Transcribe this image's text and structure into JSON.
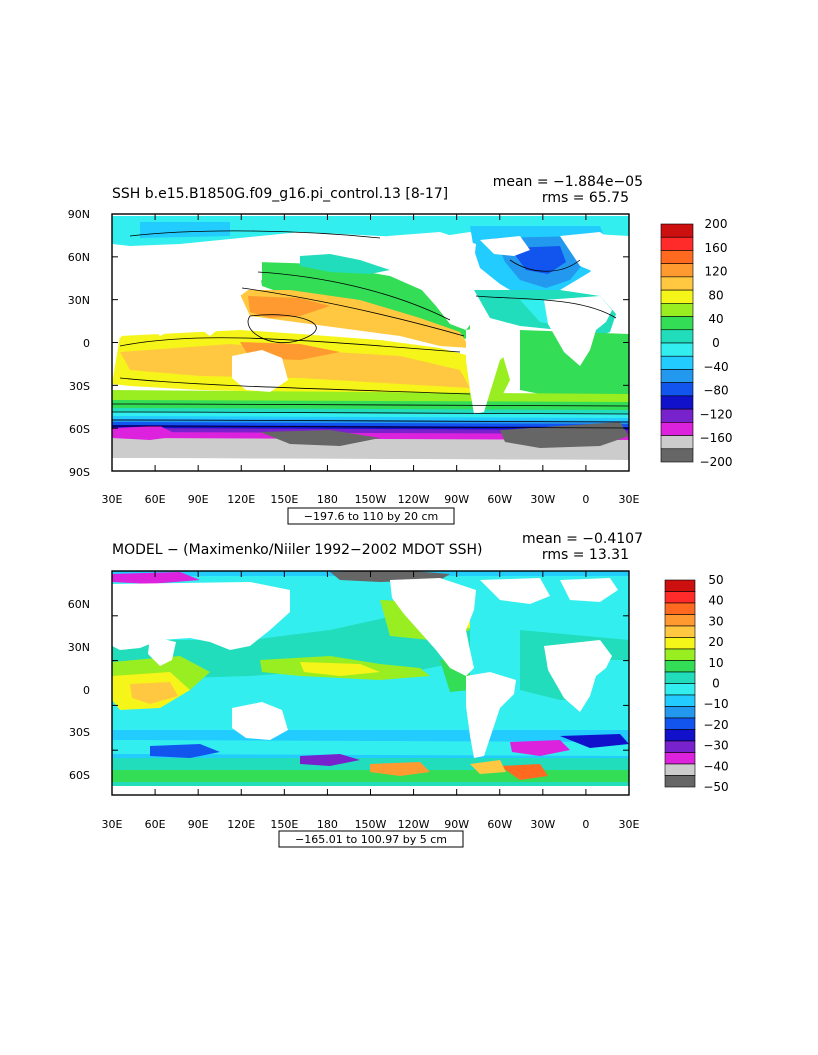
{
  "panels": [
    {
      "title": "SSH b.e15.B1850G.f09_g16.pi_control.13 [8-17]",
      "stats": {
        "mean": "mean = −1.884e−05",
        "rms": "rms = 65.75"
      },
      "y_labels": [
        "90N",
        "60N",
        "30N",
        "0",
        "30S",
        "60S",
        "90S"
      ],
      "x_labels": [
        "30E",
        "60E",
        "90E",
        "120E",
        "150E",
        "180",
        "150W",
        "120W",
        "90W",
        "60W",
        "30W",
        "0",
        "30E"
      ],
      "range_label": "−197.6 to 110 by 20 cm",
      "colorbar": {
        "labels": [
          "200",
          "160",
          "120",
          "80",
          "40",
          "0",
          "−40",
          "−80",
          "−120",
          "−160",
          "−200"
        ],
        "colors": [
          "#cc1010",
          "#ff2a2a",
          "#ff6a20",
          "#ff9a30",
          "#ffc840",
          "#f5f51a",
          "#99ee22",
          "#33dd55",
          "#22ddbb",
          "#33eeee",
          "#22ccff",
          "#2299ee",
          "#1155ee",
          "#1111cc",
          "#7722cc",
          "#dd22dd",
          "#cccccc",
          "#666666"
        ]
      }
    },
    {
      "title": "MODEL − (Maximenko/Niiler 1992−2002 MDOT SSH)",
      "stats": {
        "mean": "mean = −0.4107",
        "rms": "rms = 13.31"
      },
      "y_labels": [
        "60N",
        "30N",
        "0",
        "30S",
        "60S"
      ],
      "x_labels": [
        "30E",
        "60E",
        "90E",
        "120E",
        "150E",
        "180",
        "150W",
        "120W",
        "90W",
        "60W",
        "30W",
        "0",
        "30E"
      ],
      "range_label": "−165.01 to 100.97 by 5 cm",
      "colorbar": {
        "labels": [
          "50",
          "40",
          "30",
          "20",
          "10",
          "0",
          "−10",
          "−20",
          "−30",
          "−40",
          "−50"
        ],
        "colors": [
          "#cc1010",
          "#ff2a2a",
          "#ff6a20",
          "#ff9a30",
          "#ffc840",
          "#f5f51a",
          "#99ee22",
          "#33dd55",
          "#22ddbb",
          "#33eeee",
          "#22ccff",
          "#2299ee",
          "#1155ee",
          "#1111cc",
          "#7722cc",
          "#dd22dd",
          "#cccccc",
          "#666666"
        ]
      }
    }
  ]
}
